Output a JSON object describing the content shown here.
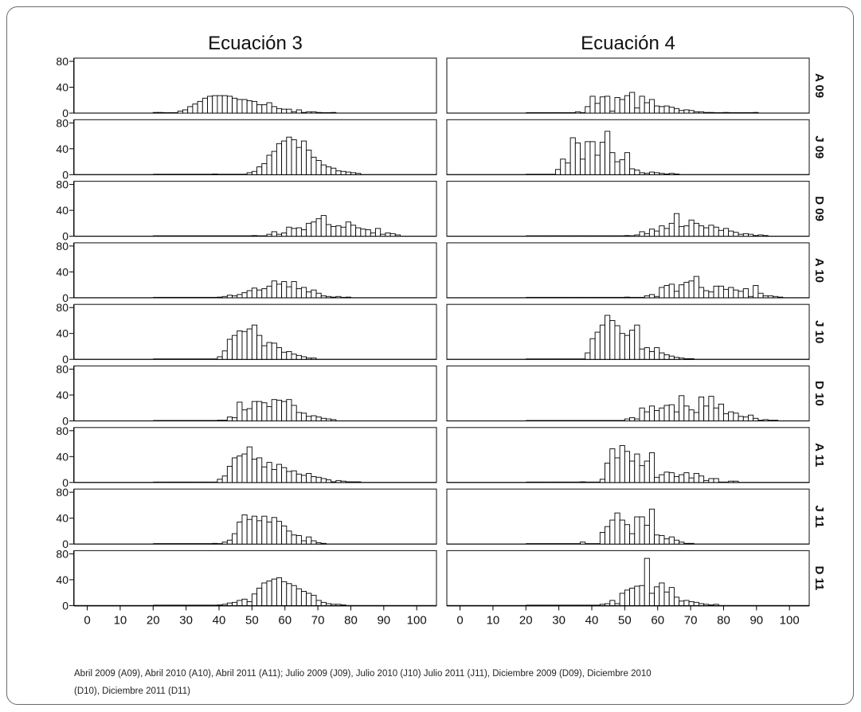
{
  "chart_data": {
    "type": "bar",
    "subtype": "histogram-grid",
    "column_titles": [
      "Ecuación 3",
      "Ecuación 4"
    ],
    "row_labels": [
      "A 09",
      "J 09",
      "D 09",
      "A 10",
      "J 10",
      "D 10",
      "A 11",
      "J 11",
      "D 11"
    ],
    "x_ticks": [
      0,
      10,
      20,
      30,
      40,
      50,
      60,
      70,
      80,
      90,
      100
    ],
    "y_ticks": [
      0,
      40,
      80
    ],
    "xlim": [
      -4,
      106
    ],
    "ylim": [
      0,
      80
    ],
    "bin_start": 20,
    "bin_width": 1.5,
    "grid": false,
    "fill_color": "#ffffff",
    "stroke_color": "#000000",
    "panels": [
      {
        "equation": "Ecuación 3",
        "period": "A 09",
        "counts": [
          1,
          1,
          0,
          0,
          0,
          3,
          5,
          10,
          14,
          18,
          23,
          26,
          27,
          27,
          27,
          26,
          23,
          21,
          21,
          19,
          18,
          13,
          13,
          16,
          10,
          7,
          6,
          6,
          2,
          5,
          1,
          2,
          2,
          1,
          0,
          0,
          1
        ]
      },
      {
        "equation": "Ecuación 4",
        "period": "A 09",
        "counts": [
          0,
          0,
          0,
          0,
          0,
          0,
          0,
          0,
          0,
          0,
          2,
          0,
          10,
          26,
          15,
          25,
          26,
          3,
          24,
          21,
          27,
          32,
          8,
          26,
          16,
          21,
          11,
          10,
          11,
          9,
          7,
          4,
          5,
          4,
          2,
          2,
          1,
          1,
          0,
          0,
          1,
          0,
          0,
          0,
          0,
          0,
          1
        ]
      },
      {
        "equation": "Ecuación 3",
        "period": "J 09",
        "counts": [
          0,
          0,
          0,
          0,
          0,
          0,
          0,
          0,
          0,
          0,
          0,
          0,
          1,
          0,
          0,
          0,
          0,
          0,
          0,
          3,
          5,
          12,
          17,
          30,
          36,
          48,
          52,
          58,
          54,
          42,
          52,
          38,
          27,
          22,
          15,
          12,
          10,
          6,
          5,
          4,
          3,
          2
        ]
      },
      {
        "equation": "Ecuación 4",
        "period": "J 09",
        "counts": [
          0,
          0,
          0,
          0,
          0,
          0,
          8,
          24,
          18,
          57,
          49,
          24,
          51,
          51,
          30,
          50,
          67,
          34,
          20,
          23,
          34,
          9,
          7,
          3,
          2,
          4,
          3,
          2,
          1,
          2,
          1
        ]
      },
      {
        "equation": "Ecuación 3",
        "period": "D 09",
        "counts": [
          0,
          0,
          0,
          0,
          0,
          0,
          0,
          0,
          0,
          0,
          0,
          0,
          0,
          0,
          0,
          0,
          0,
          0,
          0,
          0,
          1,
          0,
          0,
          3,
          7,
          3,
          5,
          14,
          12,
          13,
          10,
          20,
          22,
          27,
          32,
          18,
          15,
          16,
          14,
          22,
          17,
          13,
          11,
          10,
          5,
          12,
          3,
          5,
          4,
          2
        ]
      },
      {
        "equation": "Ecuación 4",
        "period": "D 09",
        "counts": [
          0,
          0,
          0,
          0,
          0,
          0,
          0,
          0,
          0,
          0,
          0,
          0,
          0,
          0,
          0,
          0,
          0,
          0,
          0,
          0,
          1,
          0,
          2,
          7,
          4,
          11,
          8,
          16,
          12,
          20,
          35,
          15,
          16,
          25,
          20,
          16,
          13,
          17,
          14,
          9,
          12,
          8,
          6,
          3,
          4,
          3,
          1,
          2,
          1
        ]
      },
      {
        "equation": "Ecuación 3",
        "period": "A 10",
        "counts": [
          0,
          0,
          0,
          0,
          0,
          0,
          0,
          0,
          0,
          0,
          0,
          0,
          0,
          1,
          2,
          4,
          3,
          5,
          8,
          11,
          15,
          12,
          14,
          18,
          26,
          21,
          25,
          17,
          25,
          14,
          16,
          9,
          12,
          7,
          3,
          2,
          1,
          2,
          0,
          1
        ]
      },
      {
        "equation": "Ecuación 4",
        "period": "A 10",
        "counts": [
          0,
          0,
          0,
          0,
          0,
          0,
          0,
          0,
          0,
          0,
          0,
          0,
          0,
          0,
          0,
          0,
          0,
          0,
          0,
          0,
          1,
          0,
          0,
          0,
          3,
          5,
          2,
          16,
          19,
          21,
          10,
          20,
          24,
          26,
          33,
          16,
          11,
          9,
          18,
          18,
          13,
          16,
          12,
          10,
          14,
          2,
          19,
          7,
          3,
          3,
          2,
          1
        ]
      },
      {
        "equation": "Ecuación 3",
        "period": "J 10",
        "counts": [
          0,
          0,
          0,
          0,
          0,
          0,
          0,
          0,
          0,
          0,
          0,
          0,
          0,
          4,
          13,
          31,
          37,
          44,
          43,
          47,
          53,
          37,
          21,
          26,
          25,
          18,
          11,
          12,
          8,
          6,
          4,
          2,
          2
        ]
      },
      {
        "equation": "Ecuación 4",
        "period": "J 10",
        "counts": [
          0,
          0,
          0,
          0,
          0,
          0,
          0,
          0,
          0,
          0,
          0,
          0,
          10,
          32,
          42,
          53,
          68,
          60,
          52,
          40,
          37,
          45,
          53,
          16,
          18,
          12,
          18,
          10,
          7,
          5,
          3,
          2,
          1,
          1
        ]
      },
      {
        "equation": "Ecuación 3",
        "period": "D 10",
        "counts": [
          0,
          0,
          0,
          0,
          0,
          0,
          0,
          0,
          0,
          0,
          0,
          0,
          0,
          1,
          1,
          6,
          5,
          29,
          17,
          19,
          30,
          30,
          28,
          22,
          33,
          32,
          30,
          33,
          24,
          13,
          12,
          7,
          8,
          6,
          4,
          3,
          2
        ]
      },
      {
        "equation": "Ecuación 4",
        "period": "D 10",
        "counts": [
          0,
          0,
          0,
          0,
          0,
          0,
          0,
          0,
          0,
          0,
          0,
          0,
          0,
          0,
          0,
          0,
          0,
          0,
          0,
          0,
          3,
          5,
          3,
          20,
          14,
          23,
          16,
          20,
          24,
          25,
          14,
          39,
          23,
          17,
          13,
          37,
          23,
          38,
          20,
          26,
          11,
          14,
          12,
          7,
          6,
          9,
          4,
          1,
          2,
          1,
          1
        ]
      },
      {
        "equation": "Ecuación 3",
        "period": "A 11",
        "counts": [
          0,
          0,
          0,
          0,
          0,
          0,
          0,
          0,
          0,
          0,
          0,
          0,
          0,
          5,
          10,
          25,
          38,
          41,
          44,
          55,
          36,
          38,
          24,
          31,
          20,
          28,
          23,
          17,
          18,
          13,
          11,
          14,
          9,
          8,
          6,
          4,
          1,
          3,
          2,
          1,
          1,
          1
        ]
      },
      {
        "equation": "Ecuación 4",
        "period": "A 11",
        "counts": [
          0,
          0,
          0,
          0,
          0,
          0,
          0,
          0,
          0,
          0,
          0,
          1,
          0,
          0,
          0,
          5,
          30,
          52,
          38,
          57,
          48,
          33,
          44,
          26,
          33,
          46,
          8,
          12,
          16,
          15,
          9,
          12,
          15,
          7,
          14,
          10,
          3,
          6,
          6,
          0,
          0,
          2,
          2
        ]
      },
      {
        "equation": "Ecuación 3",
        "period": "J 11",
        "counts": [
          0,
          0,
          0,
          0,
          0,
          0,
          0,
          0,
          0,
          0,
          0,
          0,
          1,
          0,
          3,
          6,
          16,
          34,
          45,
          38,
          43,
          36,
          43,
          34,
          41,
          35,
          28,
          20,
          14,
          13,
          5,
          11,
          5,
          2,
          1
        ]
      },
      {
        "equation": "Ecuación 4",
        "period": "J 11",
        "counts": [
          0,
          0,
          0,
          0,
          0,
          0,
          0,
          0,
          0,
          0,
          0,
          3,
          0,
          0,
          0,
          18,
          27,
          37,
          48,
          37,
          30,
          16,
          42,
          42,
          29,
          54,
          14,
          13,
          8,
          11,
          6,
          3,
          1,
          1
        ]
      },
      {
        "equation": "Ecuación 3",
        "period": "D 11",
        "counts": [
          0,
          0,
          0,
          0,
          0,
          0,
          0,
          0,
          0,
          0,
          0,
          0,
          0,
          1,
          2,
          4,
          5,
          8,
          10,
          6,
          18,
          27,
          35,
          38,
          41,
          43,
          37,
          34,
          31,
          26,
          22,
          19,
          16,
          8,
          5,
          3,
          2,
          2,
          1
        ]
      },
      {
        "equation": "Ecuación 4",
        "period": "D 11",
        "counts": [
          0,
          0,
          0,
          0,
          0,
          0,
          0,
          0,
          0,
          0,
          0,
          0,
          0,
          0,
          0,
          2,
          3,
          8,
          3,
          19,
          24,
          27,
          30,
          31,
          73,
          19,
          29,
          35,
          21,
          28,
          13,
          7,
          8,
          6,
          5,
          3,
          2,
          1,
          2
        ]
      }
    ]
  },
  "caption": {
    "line1": "Abril 2009 (A09), Abril 2010 (A10), Abril 2011 (A11); Julio 2009 (J09), Julio 2010 (J10) Julio 2011 (J11), Diciembre 2009 (D09), Diciembre 2010",
    "line2": "(D10), Diciembre 2011 (D11)"
  }
}
